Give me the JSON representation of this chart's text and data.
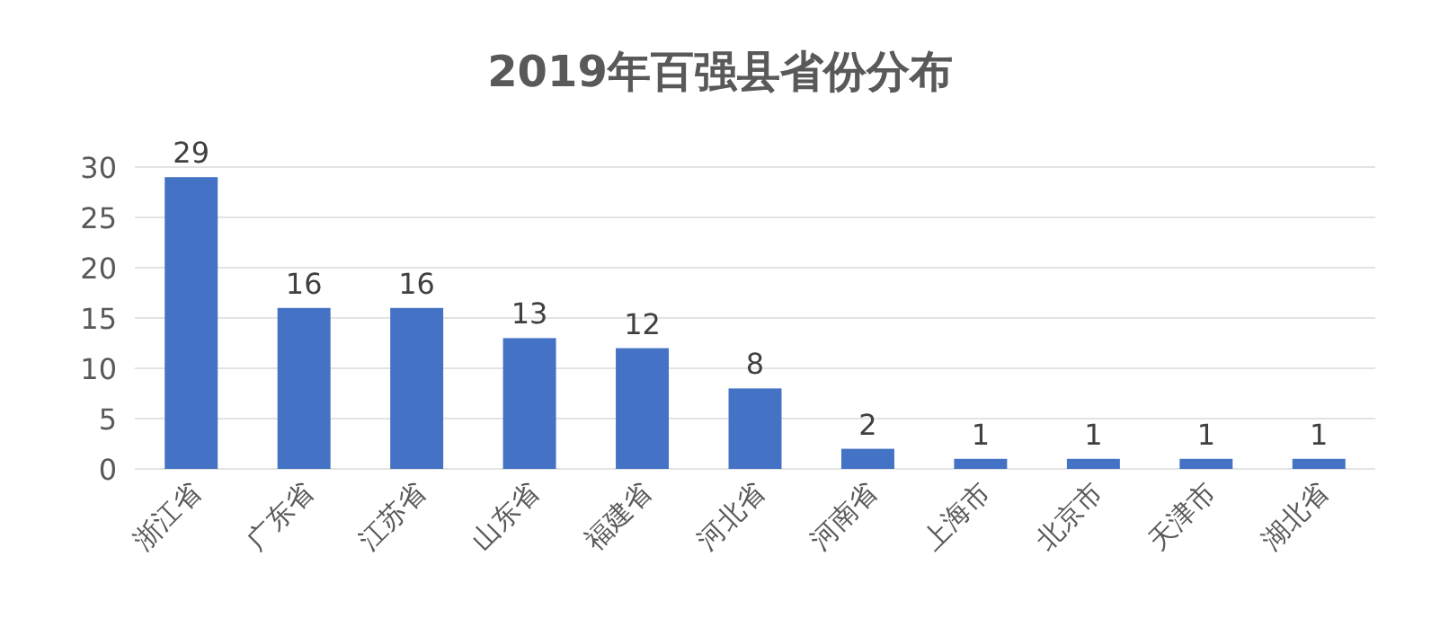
{
  "chart_data": {
    "type": "bar",
    "title": "2019年百强县省份分布",
    "categories": [
      "浙江省",
      "广东省",
      "江苏省",
      "山东省",
      "福建省",
      "河北省",
      "河南省",
      "上海市",
      "北京市",
      "天津市",
      "湖北省"
    ],
    "values": [
      29,
      16,
      16,
      13,
      12,
      8,
      2,
      1,
      1,
      1,
      1
    ],
    "color": "#4472c4",
    "ylim": [
      0,
      30
    ],
    "yticks": [
      0,
      5,
      10,
      15,
      20,
      25,
      30
    ],
    "grid": "y",
    "data_labels": true
  }
}
